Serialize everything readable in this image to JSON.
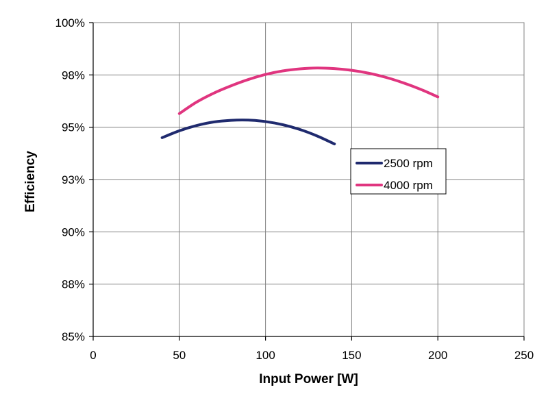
{
  "chart_data": {
    "type": "line",
    "title": "",
    "xlabel": "Input Power [W]",
    "ylabel": "Efficiency",
    "xlim": [
      0,
      250
    ],
    "ylim": [
      85,
      100
    ],
    "xticks": [
      0,
      50,
      100,
      150,
      200,
      250
    ],
    "xtick_labels": [
      "0",
      "50",
      "100",
      "150",
      "200",
      "250"
    ],
    "yticks": [
      85,
      87.5,
      90,
      92.5,
      95,
      97.5,
      100
    ],
    "ytick_labels": [
      "85%",
      "88%",
      "90%",
      "93%",
      "95%",
      "98%",
      "100%"
    ],
    "grid": true,
    "legend_position": "right-middle",
    "series": [
      {
        "name": "2500 rpm",
        "color": "#1f2a6e",
        "x": [
          40,
          50,
          60,
          70,
          80,
          90,
          100,
          110,
          120,
          130,
          140
        ],
        "y": [
          94.5,
          94.83,
          95.08,
          95.25,
          95.33,
          95.34,
          95.27,
          95.12,
          94.89,
          94.58,
          94.2
        ]
      },
      {
        "name": "4000 rpm",
        "color": "#e0357f",
        "x": [
          50,
          60,
          70,
          80,
          90,
          100,
          110,
          120,
          130,
          140,
          150,
          160,
          170,
          180,
          190,
          200
        ],
        "y": [
          95.65,
          96.2,
          96.63,
          96.98,
          97.28,
          97.52,
          97.69,
          97.79,
          97.83,
          97.8,
          97.72,
          97.58,
          97.38,
          97.12,
          96.81,
          96.45
        ]
      }
    ]
  }
}
